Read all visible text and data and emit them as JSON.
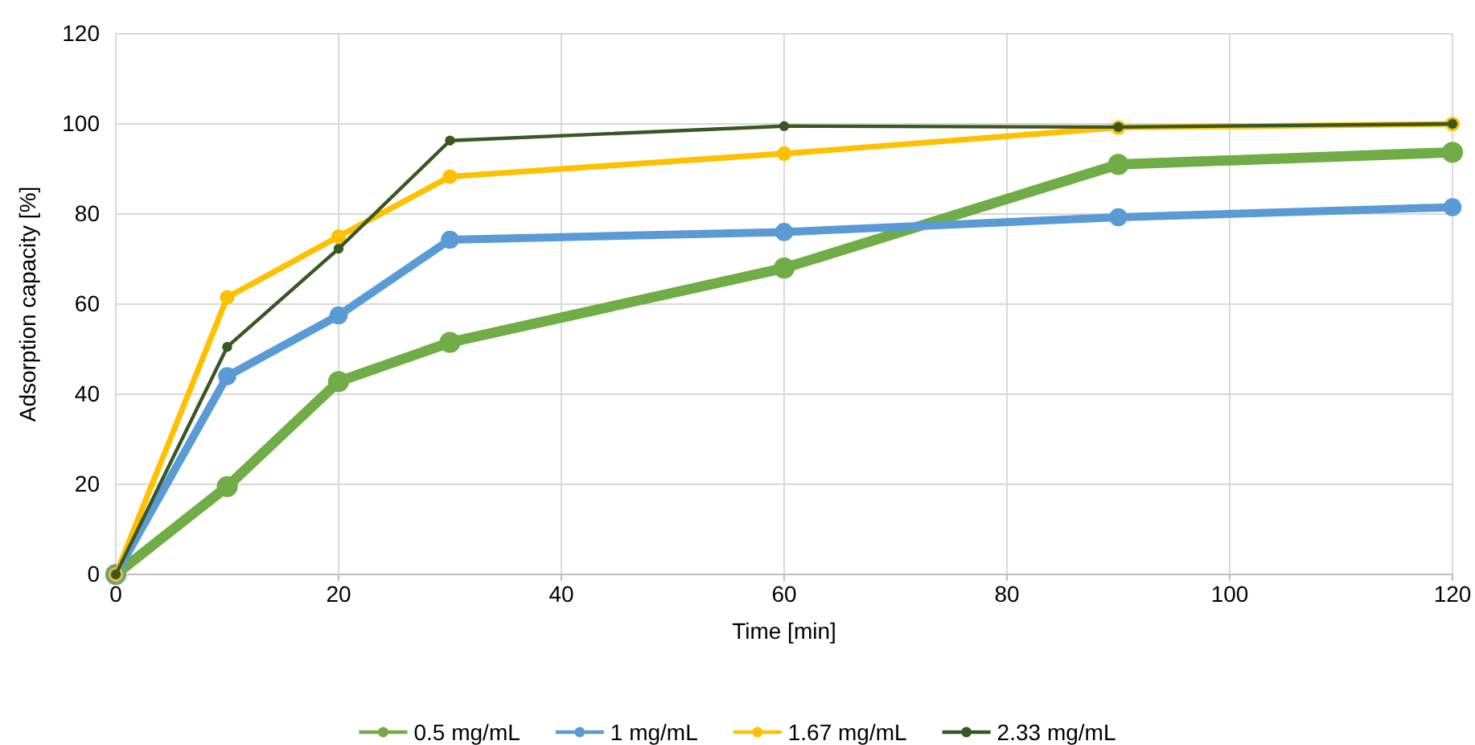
{
  "chart_data": {
    "type": "line",
    "xlabel": "Time [min]",
    "ylabel": "Adsorption capacity [%]",
    "x": [
      0,
      10,
      20,
      30,
      60,
      90,
      120
    ],
    "xlim": [
      0,
      120
    ],
    "xticks": [
      0,
      20,
      40,
      60,
      80,
      100,
      120
    ],
    "ylim": [
      0,
      120
    ],
    "yticks": [
      0,
      20,
      40,
      60,
      80,
      100,
      120
    ],
    "grid": true,
    "legend": "bottom",
    "marker": "circle",
    "line_style": "solid",
    "series": [
      {
        "name": "0.5 mg/mL",
        "color": "#70ad47",
        "values": [
          0,
          19.5,
          42.8,
          51.5,
          68,
          91,
          93.7
        ]
      },
      {
        "name": "1 mg/mL",
        "color": "#5b9bd5",
        "values": [
          0,
          44,
          57.5,
          74.3,
          76,
          79.3,
          81.5
        ]
      },
      {
        "name": "1.67 mg/mL",
        "color": "#ffc000",
        "values": [
          0,
          61.5,
          75,
          88.3,
          93.4,
          99.2,
          100
        ]
      },
      {
        "name": "2.33 mg/mL",
        "color": "#385723",
        "values": [
          0,
          50.5,
          72.3,
          96.3,
          99.5,
          99.3,
          100
        ]
      }
    ]
  }
}
